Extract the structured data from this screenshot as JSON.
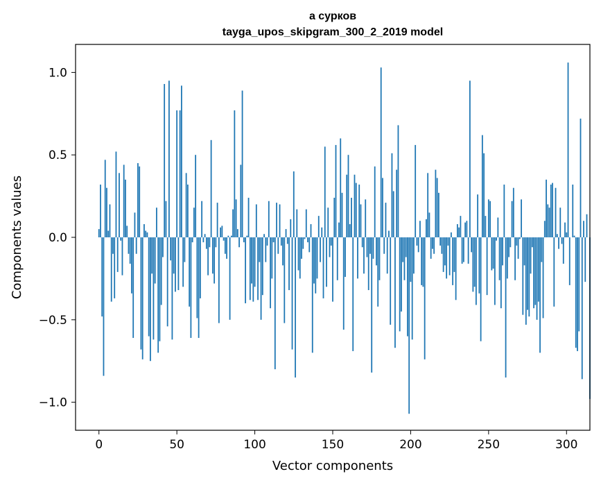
{
  "chart_data": {
    "type": "bar",
    "title": "а сурков",
    "subtitle": "tayga_upos_skipgram_300_2_2019 model",
    "xlabel": "Vector components",
    "ylabel": "Components values",
    "xlim": [
      -15,
      315
    ],
    "ylim": [
      -1.17,
      1.17
    ],
    "xticks": [
      0,
      50,
      100,
      150,
      200,
      250,
      300
    ],
    "yticks": [
      -1.0,
      -0.5,
      0.0,
      0.5,
      1.0
    ],
    "ytick_labels": [
      "−1.0",
      "−0.5",
      "0.0",
      "0.5",
      "1.0"
    ],
    "bar_color": "#1f77b4",
    "series": [
      {
        "name": "components",
        "values": [
          0.05,
          0.32,
          -0.48,
          -0.84,
          0.47,
          0.3,
          0.04,
          0.2,
          -0.39,
          -0.1,
          -0.37,
          0.52,
          -0.21,
          0.39,
          -0.02,
          -0.23,
          0.44,
          0.35,
          0.07,
          -0.1,
          -0.16,
          -0.34,
          -0.61,
          0.15,
          -0.1,
          0.45,
          0.43,
          -0.68,
          -0.74,
          0.08,
          0.04,
          0.03,
          -0.6,
          -0.75,
          -0.22,
          -0.62,
          -0.28,
          0.18,
          -0.7,
          -0.63,
          -0.41,
          -0.12,
          0.93,
          0.22,
          -0.54,
          0.95,
          -0.14,
          -0.62,
          -0.22,
          -0.33,
          0.77,
          -0.32,
          0.77,
          0.92,
          -0.3,
          -0.15,
          0.39,
          0.32,
          -0.42,
          -0.61,
          -0.03,
          0.18,
          0.5,
          -0.49,
          -0.61,
          -0.37,
          0.22,
          -0.03,
          0.02,
          -0.07,
          -0.23,
          -0.06,
          0.59,
          -0.22,
          -0.28,
          -0.06,
          0.21,
          -0.52,
          0.06,
          0.07,
          -0.02,
          -0.1,
          -0.13,
          0.01,
          -0.5,
          0.01,
          0.17,
          0.77,
          0.23,
          0.05,
          -0.06,
          0.44,
          0.89,
          -0.03,
          -0.4,
          0.01,
          0.24,
          -0.38,
          -0.28,
          -0.39,
          -0.3,
          0.2,
          -0.38,
          -0.15,
          -0.5,
          -0.35,
          0.02,
          -0.15,
          -0.05,
          0.22,
          -0.43,
          -0.25,
          -0.03,
          -0.8,
          0.21,
          -0.1,
          0.2,
          -0.05,
          -0.17,
          -0.52,
          0.05,
          -0.04,
          -0.32,
          0.11,
          -0.68,
          0.4,
          -0.85,
          0.17,
          -0.2,
          -0.25,
          -0.13,
          -0.07,
          -0.01,
          0.17,
          -0.03,
          -0.09,
          0.08,
          -0.7,
          -0.28,
          -0.34,
          -0.25,
          0.13,
          -0.15,
          0.06,
          -0.37,
          0.55,
          -0.3,
          0.18,
          -0.12,
          -0.05,
          -0.39,
          0.24,
          0.56,
          -0.26,
          0.09,
          0.6,
          0.27,
          -0.56,
          -0.24,
          0.38,
          0.5,
          0.08,
          0.24,
          -0.69,
          0.38,
          0.33,
          -0.25,
          0.32,
          0.2,
          -0.06,
          -0.22,
          0.23,
          -0.12,
          -0.32,
          -0.1,
          -0.82,
          -0.13,
          0.43,
          -0.17,
          -0.42,
          -0.26,
          1.03,
          0.36,
          -0.1,
          0.21,
          -0.22,
          0.04,
          -0.53,
          0.51,
          0.28,
          -0.67,
          0.41,
          0.68,
          -0.57,
          -0.45,
          -0.15,
          -0.26,
          -0.12,
          -0.6,
          -1.07,
          -0.27,
          -0.62,
          -0.22,
          0.56,
          -0.05,
          -0.09,
          0.1,
          -0.29,
          -0.3,
          -0.74,
          0.11,
          0.39,
          0.15,
          -0.13,
          -0.07,
          -0.1,
          0.41,
          0.36,
          0.27,
          -0.05,
          -0.1,
          -0.21,
          -0.17,
          -0.25,
          -0.05,
          -0.23,
          0.03,
          -0.29,
          -0.21,
          -0.38,
          0.08,
          0.06,
          0.13,
          -0.16,
          -0.15,
          0.09,
          0.1,
          -0.16,
          0.95,
          -0.09,
          -0.33,
          -0.3,
          -0.41,
          0.26,
          -0.34,
          -0.63,
          0.62,
          0.51,
          0.13,
          -0.35,
          0.23,
          0.22,
          -0.2,
          -0.19,
          -0.41,
          -0.02,
          0.12,
          -0.26,
          -0.43,
          -0.17,
          0.32,
          -0.85,
          -0.25,
          -0.12,
          -0.06,
          0.22,
          0.3,
          -0.26,
          -0.05,
          -0.13,
          -0.01,
          0.23,
          -0.47,
          -0.17,
          -0.53,
          -0.44,
          -0.48,
          -0.22,
          -0.06,
          -0.43,
          -0.41,
          -0.5,
          -0.39,
          -0.7,
          -0.15,
          -0.49,
          0.1,
          0.35,
          0.2,
          0.18,
          0.32,
          0.33,
          -0.42,
          0.3,
          0.02,
          -0.07,
          0.18,
          -0.04,
          -0.16,
          0.09,
          0.03,
          1.06,
          -0.29,
          0.0,
          0.32,
          0.01,
          -0.67,
          -0.69,
          -0.57,
          0.72,
          -0.86,
          0.1,
          -0.27,
          0.14,
          0.0,
          -0.98
        ]
      }
    ]
  }
}
